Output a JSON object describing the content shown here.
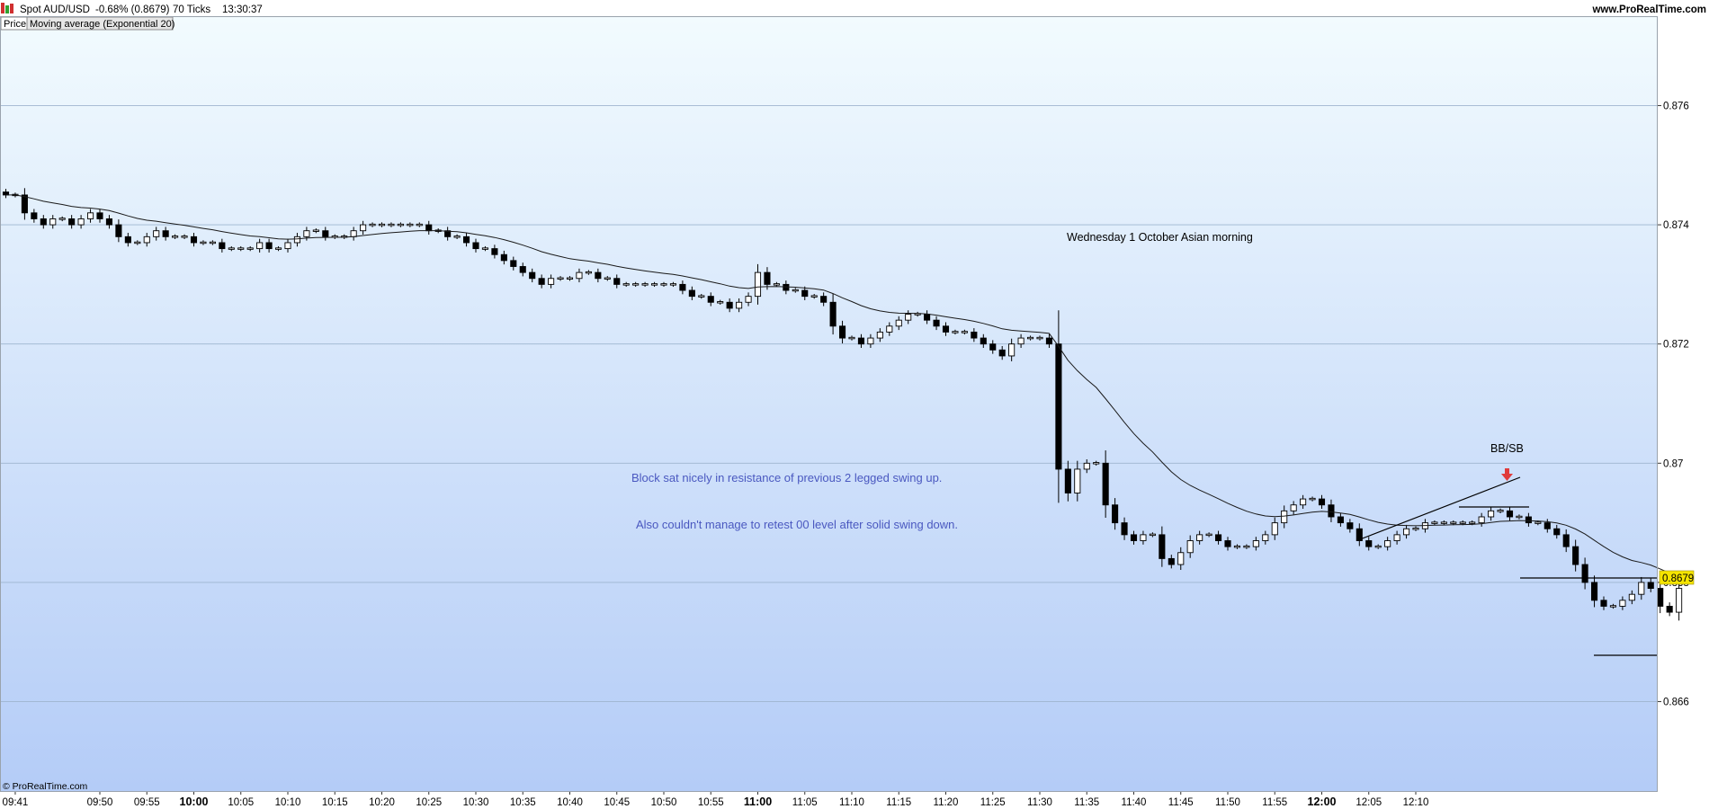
{
  "header": {
    "symbol": "Spot AUD/USD",
    "change": "-0.68% (0.8679)",
    "ticks": "70 Ticks",
    "time": "13:30:37",
    "site": "www.ProRealTime.com"
  },
  "legend": {
    "price_label": "Price",
    "ma_label": "Moving average (Exponential 20)"
  },
  "copyright": "© ProRealTime.com",
  "colors": {
    "up": "#ffffff",
    "down": "#000000",
    "ma": "#1a1a1a",
    "gradient_top": "#f2fbfe",
    "gradient_bottom": "#b4ccf7",
    "current_price_tag": "#f5e400"
  },
  "chart_data": {
    "type": "candlestick",
    "instrument": "Spot AUD/USD",
    "ylim": [
      0.8645,
      0.8775
    ],
    "price_ticks": [
      "0.876",
      "0.874",
      "0.872",
      "0.87",
      "0.868",
      "0.866"
    ],
    "current_price": "0.8679",
    "x_ticks": [
      {
        "label": "09:41",
        "bar": 1,
        "bold": false
      },
      {
        "label": "09:50",
        "bar": 10,
        "bold": false
      },
      {
        "label": "09:55",
        "bar": 15,
        "bold": false
      },
      {
        "label": "10:00",
        "bar": 20,
        "bold": true
      },
      {
        "label": "10:05",
        "bar": 25,
        "bold": false
      },
      {
        "label": "10:10",
        "bar": 30,
        "bold": false
      },
      {
        "label": "10:15",
        "bar": 35,
        "bold": false
      },
      {
        "label": "10:20",
        "bar": 40,
        "bold": false
      },
      {
        "label": "10:25",
        "bar": 45,
        "bold": false
      },
      {
        "label": "10:30",
        "bar": 50,
        "bold": false
      },
      {
        "label": "10:35",
        "bar": 55,
        "bold": false
      },
      {
        "label": "10:40",
        "bar": 60,
        "bold": false
      },
      {
        "label": "10:45",
        "bar": 65,
        "bold": false
      },
      {
        "label": "10:50",
        "bar": 70,
        "bold": false
      },
      {
        "label": "10:55",
        "bar": 75,
        "bold": false
      },
      {
        "label": "11:00",
        "bar": 80,
        "bold": true
      },
      {
        "label": "11:05",
        "bar": 85,
        "bold": false
      },
      {
        "label": "11:10",
        "bar": 90,
        "bold": false
      },
      {
        "label": "11:15",
        "bar": 95,
        "bold": false
      },
      {
        "label": "11:20",
        "bar": 100,
        "bold": false
      },
      {
        "label": "11:25",
        "bar": 105,
        "bold": false
      },
      {
        "label": "11:30",
        "bar": 110,
        "bold": false
      },
      {
        "label": "11:35",
        "bar": 115,
        "bold": false
      },
      {
        "label": "11:40",
        "bar": 120,
        "bold": false
      },
      {
        "label": "11:45",
        "bar": 125,
        "bold": false
      },
      {
        "label": "11:50",
        "bar": 130,
        "bold": false
      },
      {
        "label": "11:55",
        "bar": 135,
        "bold": false
      },
      {
        "label": "12:00",
        "bar": 140,
        "bold": true
      },
      {
        "label": "12:05",
        "bar": 145,
        "bold": false
      },
      {
        "label": "12:10",
        "bar": 150,
        "bold": false
      }
    ],
    "series": [
      {
        "name": "Price",
        "close": [
          0.8745,
          0.8745,
          0.8742,
          0.8741,
          0.874,
          0.8741,
          0.8741,
          0.874,
          0.8741,
          0.8742,
          0.8741,
          0.874,
          0.8738,
          0.8737,
          0.8737,
          0.8738,
          0.8739,
          0.8738,
          0.8738,
          0.8738,
          0.8737,
          0.8737,
          0.8737,
          0.8736,
          0.8736,
          0.8736,
          0.8736,
          0.8737,
          0.8736,
          0.8736,
          0.8737,
          0.8738,
          0.8739,
          0.8739,
          0.8738,
          0.8738,
          0.8738,
          0.8739,
          0.874,
          0.874,
          0.874,
          0.874,
          0.874,
          0.874,
          0.874,
          0.8739,
          0.8739,
          0.8738,
          0.8738,
          0.8737,
          0.8736,
          0.8736,
          0.8735,
          0.8734,
          0.8733,
          0.8732,
          0.8731,
          0.873,
          0.8731,
          0.8731,
          0.8731,
          0.8732,
          0.8732,
          0.8731,
          0.8731,
          0.873,
          0.873,
          0.873,
          0.873,
          0.873,
          0.873,
          0.873,
          0.8729,
          0.8728,
          0.8728,
          0.8727,
          0.8727,
          0.8726,
          0.8727,
          0.8728,
          0.8732,
          0.873,
          0.873,
          0.8729,
          0.8729,
          0.8728,
          0.8728,
          0.8727,
          0.8723,
          0.8721,
          0.8721,
          0.872,
          0.8721,
          0.8722,
          0.8723,
          0.8724,
          0.8725,
          0.8725,
          0.8724,
          0.8723,
          0.8722,
          0.8722,
          0.8722,
          0.8721,
          0.872,
          0.8719,
          0.8718,
          0.872,
          0.8721,
          0.8721,
          0.8721,
          0.872,
          0.8699,
          0.8695,
          0.8699,
          0.87,
          0.87,
          0.8693,
          0.869,
          0.8688,
          0.8687,
          0.8688,
          0.8688,
          0.8684,
          0.8683,
          0.8685,
          0.8687,
          0.8688,
          0.8688,
          0.8687,
          0.8686,
          0.8686,
          0.8686,
          0.8687,
          0.8688,
          0.869,
          0.8692,
          0.8693,
          0.8694,
          0.8694,
          0.8693,
          0.8691,
          0.869,
          0.8689,
          0.8687,
          0.8686,
          0.8686,
          0.8687,
          0.8688,
          0.8689,
          0.8689,
          0.869,
          0.869,
          0.869,
          0.869,
          0.869,
          0.869,
          0.8691,
          0.8692,
          0.8692,
          0.8691,
          0.8691,
          0.869,
          0.869,
          0.8689,
          0.8688,
          0.8686,
          0.8683,
          0.868,
          0.8677,
          0.8676,
          0.8676,
          0.8677,
          0.8678,
          0.868,
          0.8679,
          0.8676,
          0.8675,
          0.8679
        ]
      },
      {
        "name": "Moving average (Exponential 20)"
      }
    ]
  },
  "annotations": {
    "session_label": "Wednesday 1 October Asian morning",
    "note1": "Block sat nicely in resistance of previous 2 legged swing up.",
    "note2": "Also couldn't manage to retest 00 level after solid swing down.",
    "signal_label": "BB/SB"
  }
}
